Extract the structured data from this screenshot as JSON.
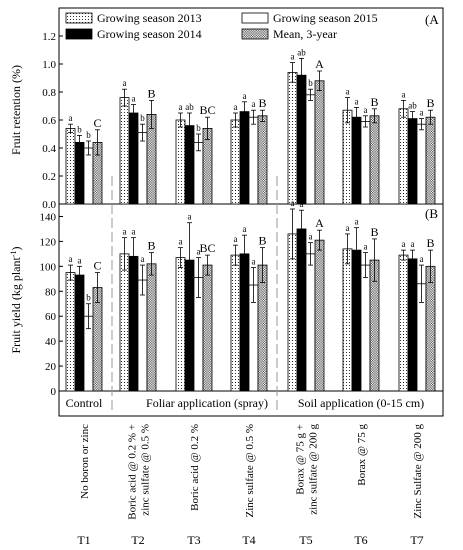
{
  "chart_data": [
    {
      "panel_label": "(A",
      "type": "bar",
      "ylabel": "Fruit retention (%)",
      "ylim": [
        0,
        1.4
      ],
      "yticks": [
        "0.0",
        "0.2",
        "0.4",
        "0.6",
        "0.8",
        "1.0",
        "1.2"
      ],
      "grid": false,
      "legend_position": "top-left",
      "categories": [
        "T1",
        "T2",
        "T3",
        "T4",
        "T5",
        "T6",
        "T7"
      ],
      "series": [
        {
          "name": "Growing season 2013",
          "values": [
            0.54,
            0.76,
            0.6,
            0.6,
            0.94,
            0.67,
            0.68
          ],
          "errors": [
            0.03,
            0.06,
            0.05,
            0.05,
            0.07,
            0.09,
            0.06
          ],
          "letters": [
            "a",
            "a",
            "a",
            "a",
            "a",
            "a",
            "a"
          ]
        },
        {
          "name": "Growing season 2014",
          "values": [
            0.44,
            0.65,
            0.56,
            0.66,
            0.92,
            0.62,
            0.61
          ],
          "errors": [
            0.05,
            0.06,
            0.09,
            0.07,
            0.12,
            0.07,
            0.05
          ],
          "letters": [
            "b",
            "a",
            "ab",
            "a",
            "ab",
            "a",
            "ab"
          ]
        },
        {
          "name": "Growing season 2015",
          "values": [
            0.4,
            0.51,
            0.44,
            0.62,
            0.78,
            0.59,
            0.57
          ],
          "errors": [
            0.05,
            0.06,
            0.06,
            0.05,
            0.04,
            0.04,
            0.04
          ],
          "letters": [
            "b",
            "b",
            "b",
            "a",
            "b",
            "a",
            "a"
          ]
        },
        {
          "name": "Mean, 3-year",
          "values": [
            0.44,
            0.64,
            0.54,
            0.63,
            0.88,
            0.63,
            0.62
          ],
          "errors": [
            0.09,
            0.1,
            0.08,
            0.04,
            0.07,
            0.05,
            0.05
          ],
          "letters": [
            "C",
            "B",
            "BC",
            "B",
            "A",
            "B",
            "B"
          ]
        }
      ]
    },
    {
      "panel_label": "(B",
      "type": "bar",
      "ylabel": "Fruit yield (kg plant",
      "ylabel_superscript": "-1",
      "ylabel_close": ")",
      "ylim": [
        0,
        150
      ],
      "yticks": [
        "0",
        "20",
        "40",
        "60",
        "80",
        "100",
        "120",
        "140"
      ],
      "grid": false,
      "categories": [
        "T1",
        "T2",
        "T3",
        "T4",
        "T5",
        "T6",
        "T7"
      ],
      "series": [
        {
          "name": "Growing season 2013",
          "values": [
            95,
            110,
            107,
            109,
            126,
            114,
            109
          ],
          "errors": [
            6,
            13,
            8,
            8,
            20,
            12,
            4
          ],
          "letters": [
            "a",
            "a",
            "a",
            "a",
            "a",
            "a",
            "a"
          ]
        },
        {
          "name": "Growing season 2014",
          "values": [
            93,
            108,
            105,
            110,
            130,
            113,
            106
          ],
          "errors": [
            7,
            15,
            30,
            15,
            15,
            18,
            7
          ],
          "letters": [
            "a",
            "a",
            "a",
            "a",
            "a",
            "a",
            "a"
          ]
        },
        {
          "name": "Growing season 2015",
          "values": [
            60,
            89,
            91,
            85,
            110,
            101,
            86
          ],
          "errors": [
            10,
            12,
            16,
            14,
            9,
            10,
            15
          ],
          "letters": [
            "b",
            "a",
            "a",
            "a",
            "a",
            "a",
            "a"
          ]
        },
        {
          "name": "Mean, 3-year",
          "values": [
            83,
            102,
            101,
            101,
            121,
            105,
            100
          ],
          "errors": [
            12,
            9,
            8,
            14,
            8,
            17,
            13
          ],
          "letters": [
            "C",
            "B",
            "BC",
            "B",
            "A",
            "B",
            "B"
          ]
        }
      ]
    }
  ],
  "groups": [
    "Control",
    "Foliar application (spray)",
    "Soil application (0-15 cm)"
  ],
  "treatments": [
    {
      "code": "T1",
      "lines": [
        "No boron or zinc"
      ]
    },
    {
      "code": "T2",
      "lines": [
        "Boric acid @ 0.2 % +",
        "zinc sulfate @ 0.5 %"
      ]
    },
    {
      "code": "T3",
      "lines": [
        "Boric acid @ 0.2 %"
      ]
    },
    {
      "code": "T4",
      "lines": [
        "Zinc sulfate @ 0.5 %"
      ]
    },
    {
      "code": "T5",
      "lines": [
        "Borax @ 75 g +",
        "zinc sulfate @ 200 g"
      ]
    },
    {
      "code": "T6",
      "lines": [
        "Borax @ 75 g"
      ]
    },
    {
      "code": "T7",
      "lines": [
        "Zinc Sulfate @ 200 g"
      ]
    }
  ],
  "colors": {
    "background": "#ffffff",
    "axis": "#000000",
    "bar_2014": "#000000",
    "bar_2015": "#ffffff",
    "divider": "#999999"
  }
}
